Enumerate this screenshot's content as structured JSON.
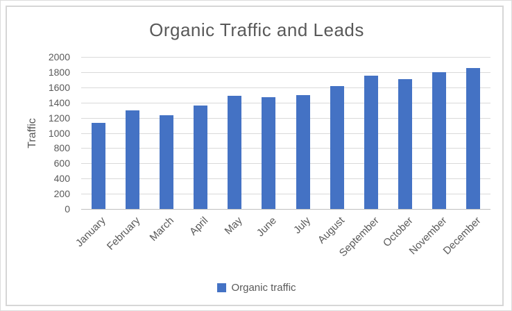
{
  "chart_data": {
    "type": "bar",
    "title": "Organic Traffic and Leads",
    "xlabel": "",
    "ylabel": "Traffic",
    "categories": [
      "January",
      "February",
      "March",
      "April",
      "May",
      "June",
      "July",
      "August",
      "September",
      "October",
      "November",
      "December"
    ],
    "values": [
      1130,
      1300,
      1230,
      1360,
      1490,
      1470,
      1500,
      1620,
      1750,
      1710,
      1800,
      1850
    ],
    "ylim": [
      0,
      2000
    ],
    "yticks": [
      0,
      200,
      400,
      600,
      800,
      1000,
      1200,
      1400,
      1600,
      1800,
      2000
    ],
    "grid": true,
    "legend": [
      "Organic traffic"
    ],
    "legend_position": "bottom",
    "x_label_rotation_deg": -45,
    "colors": {
      "bar": "#4472c4",
      "gridline": "#d9d9d9",
      "axis_line": "#bfbfbf",
      "text": "#595959",
      "frame_border": "#d6d6d6",
      "background": "#ffffff"
    }
  }
}
